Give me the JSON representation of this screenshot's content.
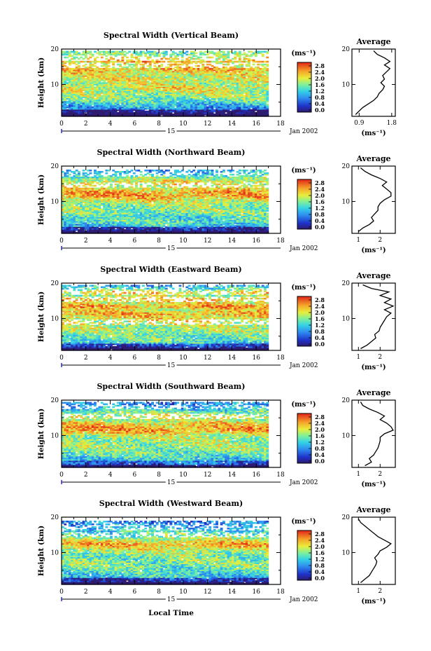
{
  "figure": {
    "xlabel": "Local Time",
    "ylabel": "Height (km)",
    "date_day": "15",
    "date_month": "Jan 2002",
    "colorbar_unit": "(ms⁻¹)",
    "average_title": "Average"
  },
  "chart_data": [
    {
      "type": "heatmap",
      "title": "Spectral Width (Vertical Beam)",
      "xlabel": "Local Time",
      "ylabel": "Height (km)",
      "xlim": [
        0,
        18
      ],
      "ylim": [
        1,
        20
      ],
      "xticks": [
        "0",
        "2",
        "4",
        "6",
        "8",
        "10",
        "12",
        "14",
        "16",
        "18"
      ],
      "yticks": [
        "10",
        "20"
      ],
      "colorbar": {
        "ticks": [
          "0.0",
          "0.4",
          "0.8",
          "1.2",
          "1.6",
          "2.0",
          "2.4",
          "2.8"
        ],
        "unit": "(ms⁻¹)"
      },
      "data_extent": {
        "time_end": 17,
        "top_height": 19.5
      },
      "gap_bands": [
        15.5,
        17.5
      ],
      "profile": {
        "title": "Average",
        "xlabel": "(ms⁻¹)",
        "xticks": [
          "0.9",
          "1.8"
        ],
        "xlim": [
          0.7,
          1.9
        ],
        "height": [
          1.5,
          2.5,
          3.5,
          4.5,
          5.5,
          6.5,
          7.5,
          8.5,
          9.5,
          10.5,
          11.5,
          12.5,
          13.5,
          14.5,
          15.5,
          16.5,
          17.5,
          18.5,
          19.5
        ],
        "values": [
          0.8,
          0.9,
          1.0,
          1.15,
          1.3,
          1.4,
          1.45,
          1.55,
          1.6,
          1.5,
          1.6,
          1.55,
          1.65,
          1.75,
          1.6,
          1.75,
          1.6,
          1.4,
          1.3
        ]
      }
    },
    {
      "type": "heatmap",
      "title": "Spectral Width (Northward Beam)",
      "xlabel": "Local Time",
      "ylabel": "Height (km)",
      "xlim": [
        0,
        18
      ],
      "ylim": [
        1,
        20
      ],
      "xticks": [
        "0",
        "2",
        "4",
        "6",
        "8",
        "10",
        "12",
        "14",
        "16",
        "18"
      ],
      "yticks": [
        "10",
        "20"
      ],
      "colorbar": {
        "ticks": [
          "0.0",
          "0.4",
          "0.8",
          "1.2",
          "1.6",
          "2.0",
          "2.4",
          "2.8"
        ],
        "unit": "(ms⁻¹)"
      },
      "data_extent": {
        "time_end": 17,
        "top_height": 19
      },
      "gap_bands": [
        14.8,
        17.8
      ],
      "profile": {
        "title": "Average",
        "xlabel": "(ms⁻¹)",
        "xticks": [
          "1",
          "2"
        ],
        "xlim": [
          0.7,
          2.7
        ],
        "height": [
          1.5,
          2.5,
          3.5,
          4.5,
          5.5,
          6.5,
          7.5,
          8.5,
          9.5,
          10.5,
          11.5,
          12.5,
          13.5,
          14.5,
          15.5,
          16.5,
          17.5,
          18.5,
          19.5
        ],
        "values": [
          1.0,
          1.2,
          1.5,
          1.7,
          1.6,
          1.75,
          1.9,
          1.9,
          2.0,
          2.2,
          2.5,
          2.5,
          2.3,
          2.1,
          2.3,
          2.0,
          1.6,
          1.3,
          1.1
        ]
      }
    },
    {
      "type": "heatmap",
      "title": "Spectral Width (Eastward Beam)",
      "xlabel": "Local Time",
      "ylabel": "Height (km)",
      "xlim": [
        0,
        18
      ],
      "ylim": [
        1,
        20
      ],
      "xticks": [
        "0",
        "2",
        "4",
        "6",
        "8",
        "10",
        "12",
        "14",
        "16",
        "18"
      ],
      "yticks": [
        "10",
        "20"
      ],
      "colorbar": {
        "ticks": [
          "0.0",
          "0.4",
          "0.8",
          "1.2",
          "1.6",
          "2.0",
          "2.4",
          "2.8"
        ],
        "unit": "(ms⁻¹)"
      },
      "data_extent": {
        "time_end": 17,
        "top_height": 19.5
      },
      "gap_bands": [
        9,
        15.5,
        17.5
      ],
      "profile": {
        "title": "Average",
        "xlabel": "(ms⁻¹)",
        "xticks": [
          "1",
          "2"
        ],
        "xlim": [
          0.7,
          2.7
        ],
        "height": [
          1.5,
          2.5,
          3.5,
          4.5,
          5.5,
          6.5,
          7.5,
          8.5,
          9.5,
          10.5,
          11.5,
          12.5,
          13.5,
          14.5,
          15.5,
          16.5,
          17.5,
          18.5,
          19.5
        ],
        "values": [
          1.1,
          1.4,
          1.6,
          1.8,
          1.75,
          1.95,
          2.0,
          2.1,
          2.2,
          2.3,
          2.5,
          2.2,
          2.6,
          2.2,
          2.5,
          2.0,
          2.4,
          1.6,
          1.2
        ]
      }
    },
    {
      "type": "heatmap",
      "title": "Spectral Width (Southward Beam)",
      "xlabel": "Local Time",
      "ylabel": "Height (km)",
      "xlim": [
        0,
        18
      ],
      "ylim": [
        1,
        20
      ],
      "xticks": [
        "0",
        "2",
        "4",
        "6",
        "8",
        "10",
        "12",
        "14",
        "16",
        "18"
      ],
      "yticks": [
        "10",
        "20"
      ],
      "colorbar": {
        "ticks": [
          "0.0",
          "0.4",
          "0.8",
          "1.2",
          "1.6",
          "2.0",
          "2.4",
          "2.8"
        ],
        "unit": "(ms⁻¹)"
      },
      "data_extent": {
        "time_end": 17,
        "top_height": 19.5
      },
      "gap_bands": [
        15.5,
        18
      ],
      "profile": {
        "title": "Average",
        "xlabel": "(ms⁻¹)",
        "xticks": [
          "1",
          "2"
        ],
        "xlim": [
          0.7,
          2.7
        ],
        "height": [
          1.5,
          2.5,
          3.5,
          4.5,
          5.5,
          6.5,
          7.5,
          8.5,
          9.5,
          10.5,
          11.5,
          12.5,
          13.5,
          14.5,
          15.5,
          16.5,
          17.5,
          18.5,
          19.5
        ],
        "values": [
          1.3,
          1.6,
          1.5,
          1.7,
          1.8,
          1.9,
          1.95,
          2.0,
          2.0,
          2.2,
          2.6,
          2.5,
          2.3,
          2.0,
          2.2,
          1.9,
          1.5,
          1.2,
          1.1
        ]
      }
    },
    {
      "type": "heatmap",
      "title": "Spectral Width (Westward Beam)",
      "xlabel": "Local Time",
      "ylabel": "Height (km)",
      "xlim": [
        0,
        18
      ],
      "ylim": [
        1,
        20
      ],
      "xticks": [
        "0",
        "2",
        "4",
        "6",
        "8",
        "10",
        "12",
        "14",
        "16",
        "18"
      ],
      "yticks": [
        "10",
        "20"
      ],
      "colorbar": {
        "ticks": [
          "0.0",
          "0.4",
          "0.8",
          "1.2",
          "1.6",
          "2.0",
          "2.4",
          "2.8"
        ],
        "unit": "(ms⁻¹)"
      },
      "data_extent": {
        "time_end": 17,
        "top_height": 19
      },
      "gap_bands": [
        15,
        17
      ],
      "profile": {
        "title": "Average",
        "xlabel": "(ms⁻¹)",
        "xticks": [
          "1",
          "2"
        ],
        "xlim": [
          0.7,
          2.7
        ],
        "height": [
          1.5,
          2.5,
          3.5,
          4.5,
          5.5,
          6.5,
          7.5,
          8.5,
          9.5,
          10.5,
          11.5,
          12.5,
          13.5,
          14.5,
          15.5,
          16.5,
          17.5,
          18.5,
          19.5
        ],
        "values": [
          1.1,
          1.3,
          1.5,
          1.6,
          1.7,
          1.8,
          1.85,
          1.75,
          1.9,
          2.0,
          2.3,
          2.5,
          2.2,
          1.9,
          1.7,
          1.5,
          1.3,
          1.1,
          1.0
        ]
      }
    }
  ]
}
